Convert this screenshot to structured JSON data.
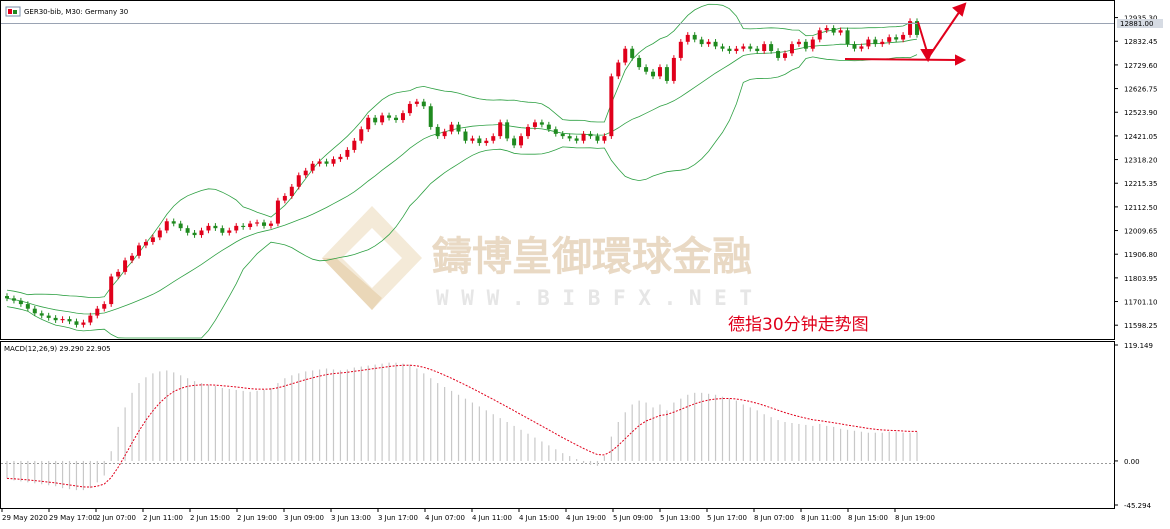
{
  "window": {
    "title": "GER30-bib, M30:  Germany 30",
    "macd_label": "MACD(12,26,9) 29.290 22.905",
    "current_price_label": "12881.00"
  },
  "watermark": {
    "brand_cn": "鑄博皇御環球金融",
    "brand_url": "W W W . B I B F X . N E T"
  },
  "annotation": {
    "caption": "德指30分钟走势图"
  },
  "colors": {
    "bull": "#e0001b",
    "bear": "#1f8a1f",
    "band": "#2ea043",
    "signal": "#e0001b",
    "histogram": "#c8c8c8",
    "current_price_bg": "#d6dbe3"
  },
  "chart_data": [
    {
      "type": "candlestick",
      "symbol": "GER30-bib",
      "timeframe": "M30",
      "y_ticks": [
        "12935.30",
        "12832.45",
        "12729.60",
        "12626.75",
        "12523.90",
        "12421.05",
        "12318.20",
        "12215.35",
        "12112.50",
        "12009.65",
        "11906.80",
        "11803.95",
        "11701.10",
        "11598.25"
      ],
      "ylim": [
        11560,
        12990
      ],
      "current_price": 12881.0,
      "x_labels": [
        "29 May 2020",
        "29 May 17:00",
        "2 Jun 07:00",
        "2 Jun 11:00",
        "2 Jun 15:00",
        "2 Jun 19:00",
        "3 Jun 09:00",
        "3 Jun 13:00",
        "3 Jun 17:00",
        "4 Jun 07:00",
        "4 Jun 11:00",
        "4 Jun 15:00",
        "4 Jun 19:00",
        "5 Jun 09:00",
        "5 Jun 13:00",
        "5 Jun 17:00",
        "8 Jun 07:00",
        "8 Jun 11:00",
        "8 Jun 15:00",
        "8 Jun 19:00"
      ],
      "close": [
        11715,
        11705,
        11690,
        11670,
        11650,
        11640,
        11630,
        11620,
        11625,
        11615,
        11600,
        11610,
        11640,
        11670,
        11690,
        11810,
        11830,
        11880,
        11900,
        11945,
        11960,
        11980,
        12010,
        12050,
        12040,
        12020,
        12000,
        11990,
        12010,
        12030,
        12020,
        12000,
        12010,
        12030,
        12025,
        12040,
        12045,
        12030,
        12040,
        12140,
        12160,
        12200,
        12250,
        12270,
        12300,
        12310,
        12300,
        12320,
        12330,
        12360,
        12400,
        12450,
        12500,
        12480,
        12510,
        12500,
        12490,
        12520,
        12560,
        12570,
        12550,
        12460,
        12420,
        12440,
        12470,
        12440,
        12400,
        12410,
        12390,
        12400,
        12420,
        12480,
        12410,
        12380,
        12420,
        12460,
        12480,
        12470,
        12450,
        12430,
        12420,
        12410,
        12400,
        12430,
        12420,
        12400,
        12420,
        12680,
        12740,
        12800,
        12760,
        12720,
        12700,
        12680,
        12720,
        12660,
        12760,
        12830,
        12860,
        12840,
        12820,
        12830,
        12810,
        12800,
        12790,
        12800,
        12810,
        12800,
        12790,
        12820,
        12790,
        12760,
        12780,
        12820,
        12830,
        12800,
        12840,
        12880,
        12890,
        12870,
        12880,
        12820,
        12800,
        12810,
        12840,
        12820,
        12830,
        12850,
        12840,
        12860,
        12920,
        12860
      ],
      "overlays": [
        "Bollinger Bands"
      ],
      "annotations": [
        "arrow down then up from last bar",
        "arrow right along lower band level"
      ]
    },
    {
      "type": "histogram+line",
      "indicator": "MACD(12,26,9)",
      "y_ticks": [
        "119.149",
        "0.00",
        "-45.294"
      ],
      "ylim": [
        -45.294,
        119.149
      ],
      "macd_value": 29.29,
      "signal_value": 22.905,
      "histogram": [
        -18,
        -20,
        -21,
        -22,
        -23,
        -24,
        -25,
        -26,
        -28,
        -29,
        -30,
        -30,
        -28,
        -22,
        -15,
        10,
        35,
        55,
        70,
        80,
        86,
        90,
        92,
        93,
        91,
        88,
        85,
        82,
        80,
        78,
        77,
        75,
        74,
        73,
        72,
        71,
        72,
        73,
        75,
        80,
        85,
        88,
        90,
        92,
        93,
        94,
        95,
        94,
        93,
        94,
        96,
        97,
        98,
        99,
        100,
        101,
        101,
        100,
        99,
        95,
        90,
        85,
        80,
        76,
        72,
        68,
        64,
        60,
        56,
        52,
        48,
        44,
        40,
        36,
        32,
        28,
        24,
        20,
        16,
        12,
        8,
        5,
        2,
        -2,
        -4,
        -5,
        5,
        25,
        40,
        50,
        58,
        62,
        60,
        55,
        58,
        52,
        60,
        64,
        68,
        70,
        70,
        69,
        68,
        66,
        64,
        62,
        58,
        55,
        52,
        48,
        45,
        42,
        40,
        39,
        38,
        37,
        36,
        38,
        36,
        35,
        33,
        32,
        31,
        30,
        29,
        29,
        29,
        30,
        30,
        29,
        29,
        30
      ]
    }
  ]
}
